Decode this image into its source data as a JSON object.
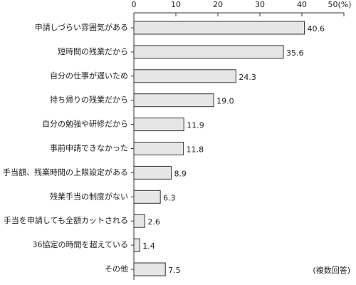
{
  "chart_data": {
    "type": "barh",
    "categories": [
      "申請しづらい雰囲気がある",
      "短時間の残業だから",
      "自分の仕事が遅いため",
      "持ち帰りの残業だから",
      "自分の勉強や研修だから",
      "事前申請できなかった",
      "手当額、残業時間の上限設定がある",
      "残業手当の制度がない",
      "手当を申請しても全額カットされる",
      "36協定の時間を超えている",
      "その他"
    ],
    "values": [
      40.6,
      35.6,
      24.3,
      19.0,
      11.9,
      11.8,
      8.9,
      6.3,
      2.6,
      1.4,
      7.5
    ],
    "value_labels": [
      "40.6",
      "35.6",
      "24.3",
      "19.0",
      "11.9",
      "11.8",
      "8.9",
      "6.3",
      "2.6",
      "1.4",
      "7.5"
    ],
    "color": "#e6e6e6",
    "xlim": [
      0,
      50
    ],
    "xticks": [
      0,
      10,
      20,
      30,
      40,
      {
        "value": 50,
        "label": "50(%)"
      }
    ],
    "annotation": "(複数回答)"
  }
}
